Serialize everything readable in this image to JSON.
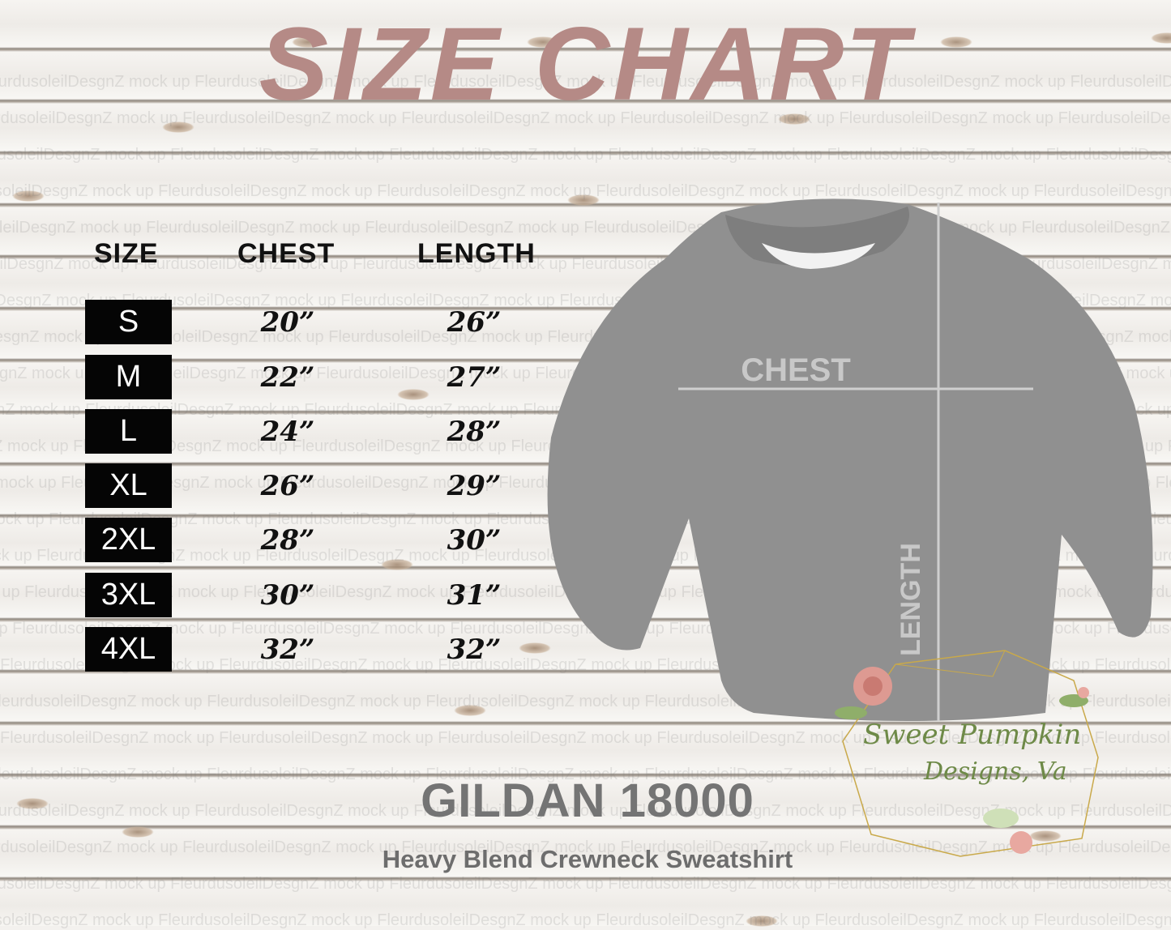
{
  "title": "SIZE CHART",
  "table": {
    "headers": [
      "SIZE",
      "CHEST",
      "LENGTH"
    ],
    "rows": [
      {
        "size": "S",
        "chest": "20”",
        "length": "26”"
      },
      {
        "size": "M",
        "chest": "22”",
        "length": "27”"
      },
      {
        "size": "L",
        "chest": "24”",
        "length": "28”"
      },
      {
        "size": "XL",
        "chest": "26”",
        "length": "29”"
      },
      {
        "size": "2XL",
        "chest": "28”",
        "length": "30”"
      },
      {
        "size": "3XL",
        "chest": "30”",
        "length": "31”"
      },
      {
        "size": "4XL",
        "chest": "32”",
        "length": "32”"
      }
    ]
  },
  "shirt": {
    "chest_label": "CHEST",
    "length_label": "LENGTH",
    "color": "#8f8f8f"
  },
  "product": {
    "model": "GILDAN 18000",
    "description": "Heavy Blend Crewneck Sweatshirt"
  },
  "logo": {
    "line1": "Sweet Pumpkin",
    "line2": "Designs, Va"
  },
  "watermark": "FleurdusoleilDesgnZ mock up",
  "colors": {
    "title": "#b58a86",
    "size_box": "#050505",
    "logo_text": "#6e8a48"
  }
}
